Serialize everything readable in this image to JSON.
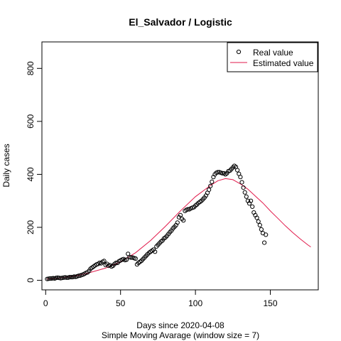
{
  "chart_data": {
    "type": "scatter",
    "title": "El_Salvador / Logistic",
    "xlabel": "Days since 2020-04-08",
    "xlabel_sub": "Simple Moving Avarage (window size = 7)",
    "ylabel": "Daily cases",
    "xlim": [
      -2.5,
      182
    ],
    "ylim": [
      -36,
      900
    ],
    "x_ticks": [
      0,
      50,
      100,
      150
    ],
    "y_ticks": [
      0,
      200,
      400,
      600,
      800
    ],
    "legend_position": "top-right",
    "legend": [
      "Real value",
      "Estimated value"
    ],
    "colors": {
      "real": "#000000",
      "estimated": "#e11a4b"
    },
    "series": [
      {
        "name": "Real value",
        "marker": "open-circle",
        "points": [
          [
            1,
            5
          ],
          [
            2,
            6
          ],
          [
            3,
            7
          ],
          [
            4,
            7
          ],
          [
            5,
            8
          ],
          [
            6,
            7
          ],
          [
            7,
            9
          ],
          [
            8,
            10
          ],
          [
            9,
            9
          ],
          [
            10,
            8
          ],
          [
            11,
            9
          ],
          [
            12,
            10
          ],
          [
            13,
            11
          ],
          [
            14,
            10
          ],
          [
            15,
            10
          ],
          [
            16,
            12
          ],
          [
            17,
            12
          ],
          [
            18,
            12
          ],
          [
            19,
            14
          ],
          [
            20,
            13
          ],
          [
            21,
            15
          ],
          [
            22,
            17
          ],
          [
            23,
            18
          ],
          [
            24,
            20
          ],
          [
            25,
            22
          ],
          [
            26,
            25
          ],
          [
            27,
            28
          ],
          [
            28,
            30
          ],
          [
            29,
            36
          ],
          [
            30,
            44
          ],
          [
            31,
            48
          ],
          [
            32,
            52
          ],
          [
            33,
            56
          ],
          [
            34,
            60
          ],
          [
            35,
            62
          ],
          [
            36,
            66
          ],
          [
            37,
            64
          ],
          [
            38,
            70
          ],
          [
            39,
            73
          ],
          [
            40,
            58
          ],
          [
            41,
            62
          ],
          [
            42,
            55
          ],
          [
            43,
            57
          ],
          [
            44,
            52
          ],
          [
            45,
            55
          ],
          [
            46,
            62
          ],
          [
            47,
            66
          ],
          [
            48,
            66
          ],
          [
            49,
            72
          ],
          [
            50,
            75
          ],
          [
            51,
            78
          ],
          [
            52,
            80
          ],
          [
            53,
            76
          ],
          [
            54,
            78
          ],
          [
            55,
            100
          ],
          [
            56,
            88
          ],
          [
            57,
            86
          ],
          [
            58,
            86
          ],
          [
            59,
            84
          ],
          [
            60,
            82
          ],
          [
            61,
            60
          ],
          [
            62,
            66
          ],
          [
            63,
            70
          ],
          [
            64,
            74
          ],
          [
            65,
            80
          ],
          [
            66,
            86
          ],
          [
            67,
            92
          ],
          [
            68,
            98
          ],
          [
            69,
            104
          ],
          [
            70,
            108
          ],
          [
            71,
            112
          ],
          [
            72,
            116
          ],
          [
            73,
            108
          ],
          [
            74,
            128
          ],
          [
            75,
            134
          ],
          [
            76,
            140
          ],
          [
            77,
            146
          ],
          [
            78,
            150
          ],
          [
            79,
            158
          ],
          [
            80,
            162
          ],
          [
            81,
            168
          ],
          [
            82,
            175
          ],
          [
            83,
            182
          ],
          [
            84,
            188
          ],
          [
            85,
            196
          ],
          [
            86,
            202
          ],
          [
            87,
            208
          ],
          [
            88,
            218
          ],
          [
            89,
            238
          ],
          [
            90,
            246
          ],
          [
            91,
            232
          ],
          [
            92,
            226
          ],
          [
            93,
            262
          ],
          [
            94,
            266
          ],
          [
            95,
            268
          ],
          [
            96,
            268
          ],
          [
            97,
            272
          ],
          [
            98,
            274
          ],
          [
            99,
            276
          ],
          [
            100,
            282
          ],
          [
            101,
            286
          ],
          [
            102,
            292
          ],
          [
            103,
            296
          ],
          [
            104,
            300
          ],
          [
            105,
            306
          ],
          [
            106,
            312
          ],
          [
            107,
            320
          ],
          [
            108,
            330
          ],
          [
            109,
            342
          ],
          [
            110,
            356
          ],
          [
            111,
            372
          ],
          [
            112,
            390
          ],
          [
            113,
            400
          ],
          [
            114,
            406
          ],
          [
            115,
            408
          ],
          [
            116,
            408
          ],
          [
            117,
            406
          ],
          [
            118,
            404
          ],
          [
            119,
            404
          ],
          [
            120,
            400
          ],
          [
            121,
            404
          ],
          [
            122,
            412
          ],
          [
            123,
            414
          ],
          [
            124,
            420
          ],
          [
            125,
            426
          ],
          [
            126,
            432
          ],
          [
            127,
            428
          ],
          [
            128,
            416
          ],
          [
            129,
            402
          ],
          [
            130,
            390
          ],
          [
            131,
            370
          ],
          [
            132,
            350
          ],
          [
            133,
            332
          ],
          [
            134,
            316
          ],
          [
            135,
            300
          ],
          [
            136,
            290
          ],
          [
            137,
            300
          ],
          [
            138,
            278
          ],
          [
            139,
            256
          ],
          [
            140,
            246
          ],
          [
            141,
            236
          ],
          [
            142,
            222
          ],
          [
            143,
            208
          ],
          [
            144,
            192
          ],
          [
            145,
            178
          ],
          [
            146,
            142
          ],
          [
            147,
            172
          ]
        ]
      },
      {
        "name": "Estimated value",
        "marker": "line",
        "points": [
          [
            1,
            5
          ],
          [
            10,
            9
          ],
          [
            20,
            16
          ],
          [
            30,
            30
          ],
          [
            40,
            46
          ],
          [
            50,
            70
          ],
          [
            60,
            104
          ],
          [
            70,
            150
          ],
          [
            80,
            204
          ],
          [
            90,
            262
          ],
          [
            100,
            316
          ],
          [
            110,
            358
          ],
          [
            115,
            376
          ],
          [
            120,
            384
          ],
          [
            125,
            380
          ],
          [
            130,
            364
          ],
          [
            135,
            344
          ],
          [
            140,
            318
          ],
          [
            145,
            292
          ],
          [
            150,
            262
          ],
          [
            155,
            234
          ],
          [
            160,
            206
          ],
          [
            165,
            180
          ],
          [
            170,
            156
          ],
          [
            175,
            134
          ],
          [
            177,
            126
          ]
        ]
      }
    ]
  }
}
